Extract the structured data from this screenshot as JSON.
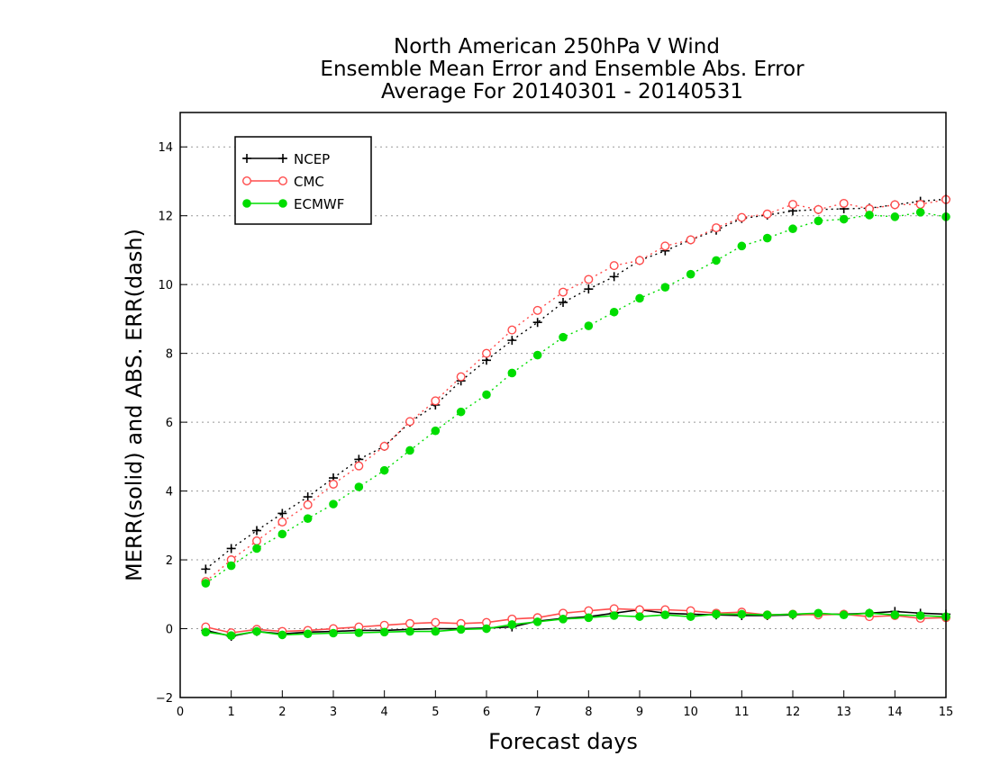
{
  "chart_data": {
    "type": "line",
    "title_lines": [
      "North American 250hPa V Wind",
      "Ensemble Mean Error and Ensemble Abs. Error",
      "Average For 20140301 - 20140531"
    ],
    "xlabel": "Forecast days",
    "ylabel": "MERR(solid) and ABS. ERR(dash)",
    "xlim": [
      0,
      15
    ],
    "ylim": [
      -2,
      15
    ],
    "xticks": [
      0,
      1,
      2,
      3,
      4,
      5,
      6,
      7,
      8,
      9,
      10,
      11,
      12,
      13,
      14,
      15
    ],
    "yticks": [
      -2,
      0,
      2,
      4,
      6,
      8,
      10,
      12,
      14
    ],
    "grid": "horizontal dotted",
    "legend_position": "top-left",
    "x": [
      0.5,
      1,
      1.5,
      2,
      2.5,
      3,
      3.5,
      4,
      4.5,
      5,
      5.5,
      6,
      6.5,
      7,
      7.5,
      8,
      8.5,
      9,
      9.5,
      10,
      10.5,
      11,
      11.5,
      12,
      12.5,
      13,
      13.5,
      14,
      14.5,
      15
    ],
    "series": [
      {
        "name": "NCEP",
        "color": "#000000",
        "marker": "plus",
        "abs_err": [
          1.73,
          2.33,
          2.85,
          3.35,
          3.83,
          4.38,
          4.92,
          5.3,
          6.0,
          6.5,
          7.2,
          7.8,
          8.38,
          8.9,
          9.48,
          9.87,
          10.23,
          10.7,
          10.98,
          11.3,
          11.58,
          11.92,
          12.02,
          12.14,
          12.18,
          12.2,
          12.22,
          12.32,
          12.42,
          12.48
        ],
        "mean_err": [
          -0.05,
          -0.22,
          -0.08,
          -0.15,
          -0.1,
          -0.08,
          -0.05,
          -0.05,
          -0.02,
          0.0,
          0.0,
          0.02,
          0.05,
          0.22,
          0.3,
          0.35,
          0.45,
          0.55,
          0.45,
          0.42,
          0.4,
          0.38,
          0.38,
          0.4,
          0.42,
          0.42,
          0.45,
          0.5,
          0.45,
          0.42
        ]
      },
      {
        "name": "CMC",
        "color": "#ff4c4c",
        "marker": "open-circle",
        "abs_err": [
          1.37,
          2.0,
          2.55,
          3.1,
          3.6,
          4.2,
          4.73,
          5.3,
          6.02,
          6.62,
          7.32,
          8.0,
          8.68,
          9.25,
          9.78,
          10.15,
          10.55,
          10.7,
          11.12,
          11.3,
          11.65,
          11.95,
          12.05,
          12.33,
          12.18,
          12.36,
          12.2,
          12.32,
          12.33,
          12.47
        ],
        "mean_err": [
          0.05,
          -0.12,
          -0.02,
          -0.08,
          -0.05,
          0.0,
          0.05,
          0.1,
          0.15,
          0.18,
          0.15,
          0.18,
          0.28,
          0.32,
          0.45,
          0.52,
          0.58,
          0.55,
          0.55,
          0.52,
          0.45,
          0.48,
          0.4,
          0.42,
          0.4,
          0.42,
          0.35,
          0.38,
          0.3,
          0.32
        ]
      },
      {
        "name": "ECMWF",
        "color": "#00dd00",
        "marker": "filled-circle",
        "abs_err": [
          1.32,
          1.83,
          2.33,
          2.75,
          3.2,
          3.62,
          4.12,
          4.6,
          5.18,
          5.75,
          6.3,
          6.8,
          7.43,
          7.95,
          8.47,
          8.8,
          9.2,
          9.6,
          9.92,
          10.3,
          10.7,
          11.12,
          11.35,
          11.62,
          11.85,
          11.9,
          12.02,
          11.97,
          12.1,
          11.97
        ],
        "mean_err": [
          -0.1,
          -0.2,
          -0.08,
          -0.18,
          -0.15,
          -0.13,
          -0.12,
          -0.1,
          -0.08,
          -0.08,
          -0.02,
          0.0,
          0.12,
          0.2,
          0.28,
          0.32,
          0.38,
          0.35,
          0.4,
          0.35,
          0.42,
          0.42,
          0.4,
          0.42,
          0.45,
          0.4,
          0.45,
          0.4,
          0.38,
          0.35
        ]
      }
    ]
  }
}
